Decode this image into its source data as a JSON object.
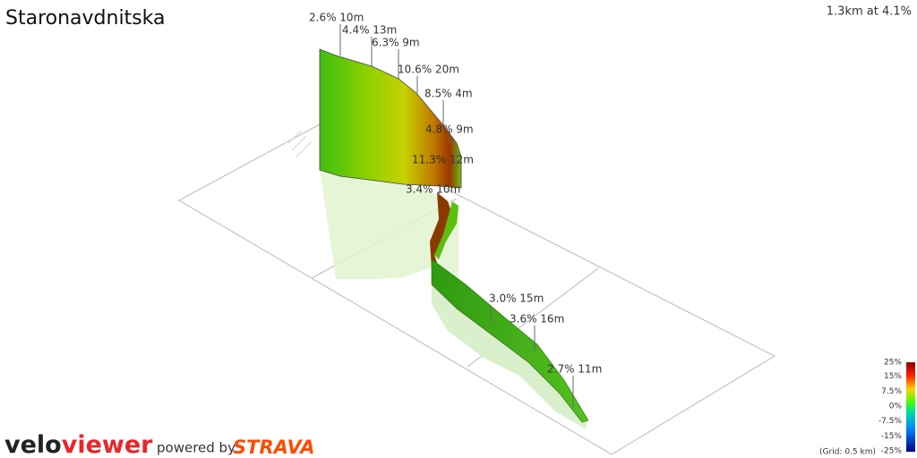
{
  "header": {
    "title": "Staronavdnitska",
    "summary": "1.3km at 4.1%"
  },
  "segment_labels": [
    "2.6% 10m",
    "4.4% 13m",
    "6.3% 9m",
    "10.6% 20m",
    "8.5% 4m",
    "4.8% 9m",
    "11.3% 12m",
    "3.4% 10m",
    "3.0% 15m",
    "3.6% 16m",
    "2.7% 11m"
  ],
  "legend": {
    "ticks": [
      "25%",
      "15%",
      "7.5%",
      "0%",
      "-7.5%",
      "-15%",
      "-25%"
    ],
    "grid_note": "(Grid: 0.5 km)"
  },
  "footer": {
    "logo_velo": "velo",
    "logo_viewer": "viewer",
    "powered_by": "powered by",
    "strava": "STRAVA"
  }
}
